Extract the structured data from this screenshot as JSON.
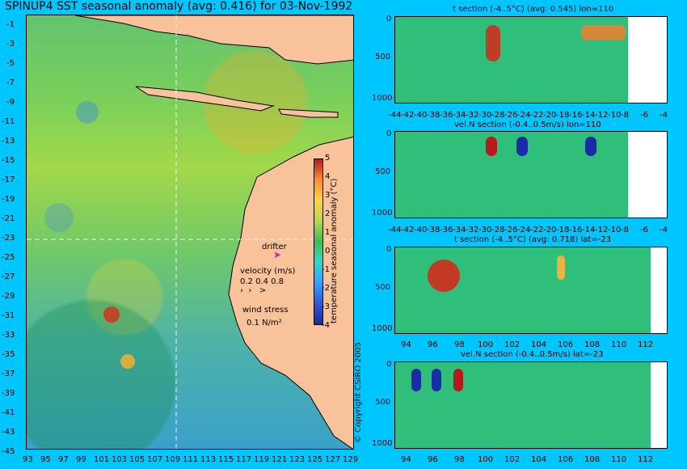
{
  "header": {
    "title": "SPINUP4 SST seasonal anomaly (avg: 0.416) for 03-Nov-1992"
  },
  "map": {
    "y_ticks": [
      "-1",
      "-3",
      "-5",
      "-7",
      "-9",
      "-11",
      "-13",
      "-15",
      "-17",
      "-19",
      "-21",
      "-23",
      "-25",
      "-27",
      "-29",
      "-31",
      "-33",
      "-35",
      "-37",
      "-39",
      "-41",
      "-43",
      "-45"
    ],
    "x_ticks": [
      "93",
      "95",
      "97",
      "99",
      "101",
      "103",
      "105",
      "107",
      "109",
      "111",
      "113",
      "115",
      "117",
      "119",
      "121",
      "123",
      "125",
      "127",
      "129"
    ],
    "colorbar": {
      "label": "temperature seasonal anomaly (°C)",
      "ticks": [
        "5",
        "4",
        "3",
        "2",
        "1",
        "0",
        "-1",
        "-2",
        "-3",
        "-4"
      ]
    },
    "legend": {
      "drifter_label": "drifter",
      "velocity_label": "velocity (m/s)",
      "velocity_values": "0.2 0.4 0.8",
      "wind_label": "wind stress",
      "wind_value": "0.1 N/m²"
    }
  },
  "panels": {
    "panel1": {
      "title": "t section (-4..5°C) (avg: 0.545) lon=110",
      "y_ticks": [
        "0",
        "500",
        "1000"
      ],
      "x_ticks": [
        "-44",
        "-42",
        "-40",
        "-38",
        "-36",
        "-34",
        "-32",
        "-30",
        "-28",
        "-26",
        "-24",
        "-22",
        "-20",
        "-18",
        "-16",
        "-14",
        "-12",
        "-10",
        "-8",
        "-6",
        "-4"
      ]
    },
    "panel2": {
      "title": "vel.N section (-0.4..0.5m/s) lon=110",
      "y_ticks": [
        "0",
        "500",
        "1000"
      ],
      "x_ticks": [
        "-44",
        "-42",
        "-40",
        "-38",
        "-36",
        "-34",
        "-32",
        "-30",
        "-28",
        "-26",
        "-24",
        "-22",
        "-20",
        "-18",
        "-16",
        "-14",
        "-12",
        "-10",
        "-8",
        "-6",
        "-4"
      ]
    },
    "panel3": {
      "title": "t section (-4..5°C) (avg: 0.718) lat=-23",
      "y_ticks": [
        "0",
        "500",
        "1000"
      ],
      "x_ticks": [
        "94",
        "96",
        "98",
        "100",
        "102",
        "104",
        "106",
        "108",
        "110",
        "112"
      ]
    },
    "panel4": {
      "title": "vel.N section (-0.4..0.5m/s) lat=-23",
      "y_ticks": [
        "0",
        "500",
        "1000"
      ],
      "x_ticks": [
        "94",
        "96",
        "98",
        "100",
        "102",
        "104",
        "106",
        "108",
        "110",
        "112"
      ]
    }
  },
  "footer": {
    "copyright": "© Copyright CSIRO 2005"
  }
}
